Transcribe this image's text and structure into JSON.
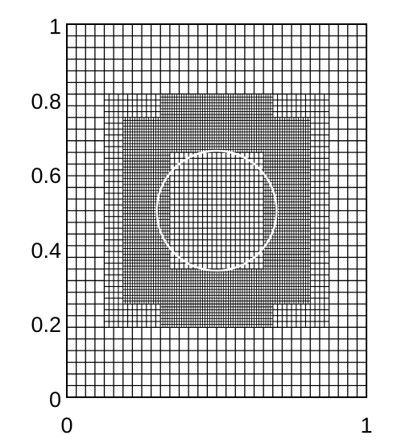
{
  "figure": {
    "x_ticks": [
      "0",
      "1"
    ],
    "y_ticks": [
      "0",
      "0.2",
      "0.4",
      "0.6",
      "0.8",
      "1"
    ],
    "xlim": [
      0,
      1
    ],
    "ylim": [
      0,
      1
    ],
    "circle": {
      "center": [
        0.5,
        0.5
      ],
      "radius": 0.2,
      "color": "#ffffff"
    },
    "mesh": {
      "base_cell": 0.03125,
      "line_color": "#000000",
      "refinement_levels": [
        {
          "level": 1,
          "cell": 0.015625,
          "regions": [
            [
              0.125,
              0.1875,
              0.875,
              0.8125
            ]
          ]
        },
        {
          "level": 2,
          "cell": 0.0078125,
          "regions": [
            [
              0.1875,
              0.25,
              0.8125,
              0.75
            ],
            [
              0.3125,
              0.1875,
              0.6875,
              0.25
            ],
            [
              0.3125,
              0.75,
              0.6875,
              0.8125
            ]
          ]
        },
        {
          "level": 1,
          "cell": 0.015625,
          "regions": [
            [
              0.34375,
              0.34375,
              0.65625,
              0.65625
            ]
          ]
        }
      ]
    }
  }
}
